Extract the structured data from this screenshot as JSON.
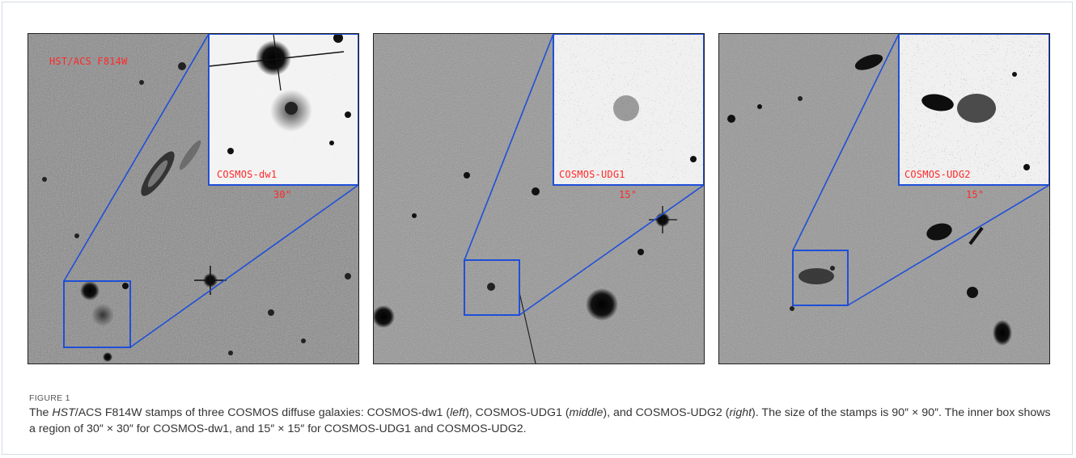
{
  "figure": {
    "panels": [
      {
        "instrument_label": "HST/ACS F814W",
        "object_label": "COSMOS-dw1",
        "inset_scale": "30\""
      },
      {
        "object_label": "COSMOS-UDG1",
        "inset_scale": "15\""
      },
      {
        "object_label": "COSMOS-UDG2",
        "inset_scale": "15\""
      }
    ],
    "colors": {
      "zoom_box": "#1f4fd8",
      "labels": "#ff2a2a",
      "sky": "#8a8a8a"
    },
    "caption": {
      "label": "FIGURE 1",
      "part1": "The ",
      "part2": "HST",
      "part3": "/ACS F814W stamps of three COSMOS diffuse galaxies: COSMOS-dw1 (",
      "part4": "left",
      "part5": "), COSMOS-UDG1 (",
      "part6": "middle",
      "part7": "), and COSMOS-UDG2 (",
      "part8": "right",
      "part9": "). The size of the stamps is 90″ × 90″. The inner box shows a region of 30″ × 30″ for COSMOS-dw1, and 15″ × 15″ for COSMOS-UDG1 and COSMOS-UDG2."
    }
  }
}
